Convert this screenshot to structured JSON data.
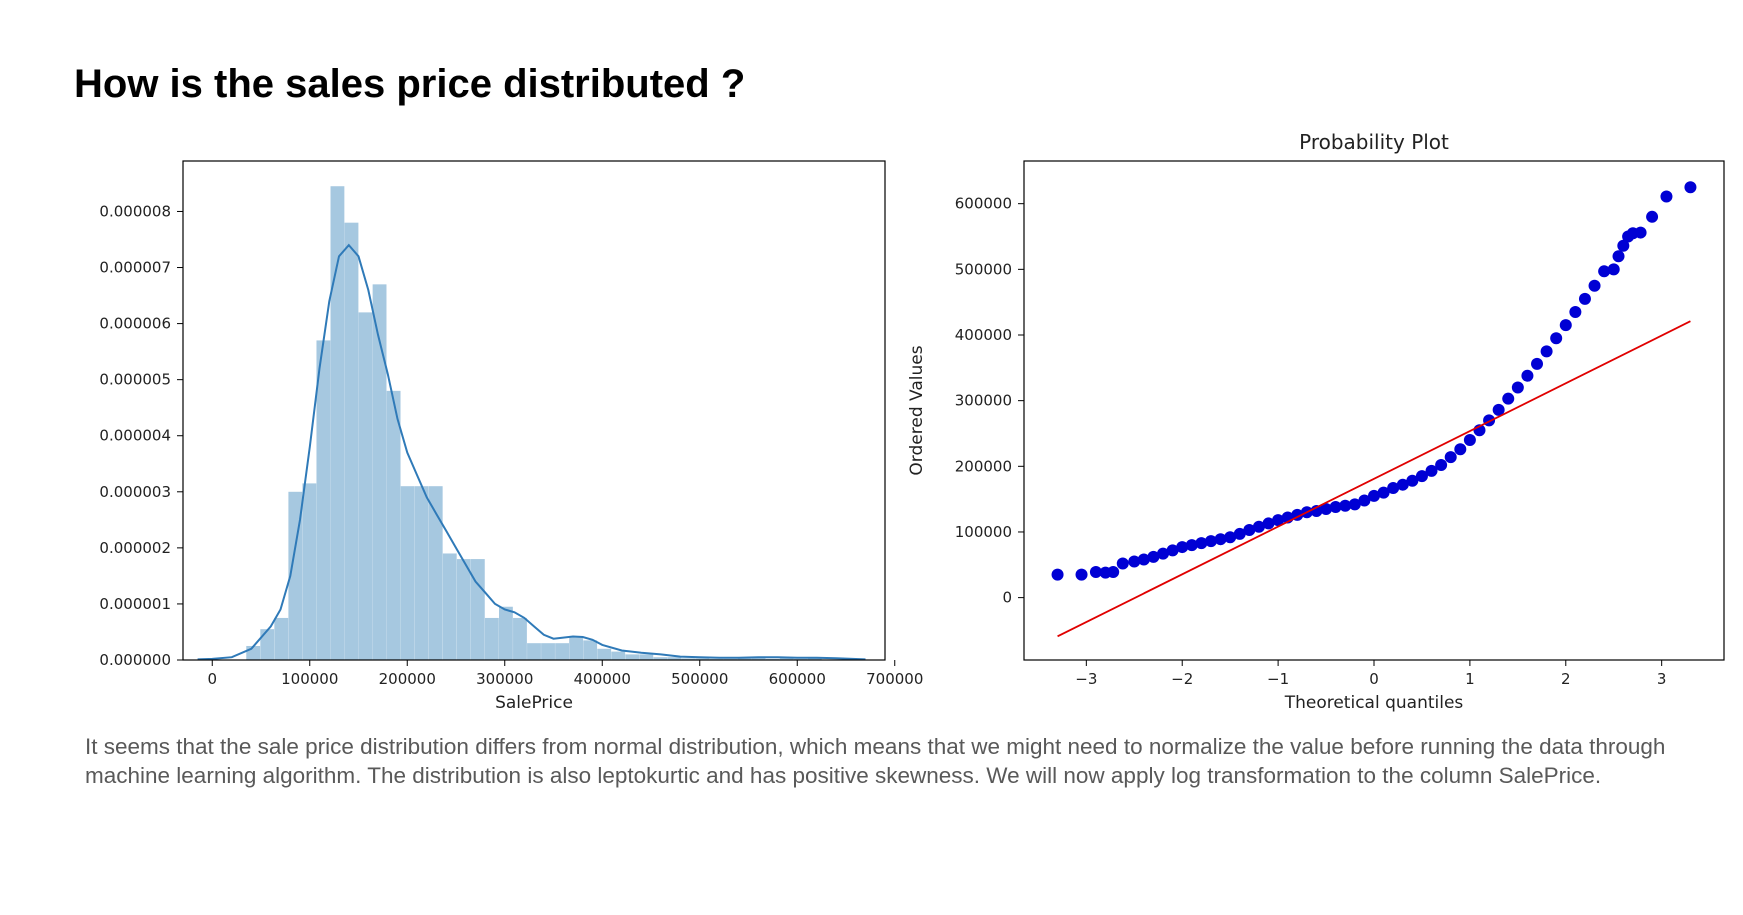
{
  "page": {
    "title": "How is the sales price distributed ?",
    "caption": "It seems that the sale price distribution differs from normal distribution, which means that we might need to normalize the value before running the data through machine learning algorithm. The distribution is also leptokurtic and has positive skewness. We will now apply log transformation to the column SalePrice."
  },
  "colors": {
    "hist_bar": "#a6c8e0",
    "kde_line": "#2f7ab8",
    "qq_points": "#0000d4",
    "qq_fit_line": "#e00000",
    "axes": "#000000"
  },
  "chart_data": [
    {
      "type": "bar",
      "subtype": "histogram-with-kde",
      "title": "",
      "xlabel": "SalePrice",
      "ylabel": "",
      "xlim": [
        -30000,
        690000
      ],
      "ylim": [
        0,
        8.9e-06
      ],
      "xticks": [
        0,
        100000,
        200000,
        300000,
        400000,
        500000,
        600000,
        700000
      ],
      "xtick_labels": [
        "0",
        "100000",
        "200000",
        "300000",
        "400000",
        "500000",
        "600000",
        "700000"
      ],
      "yticks": [
        0,
        1e-06,
        2e-06,
        3e-06,
        4e-06,
        5e-06,
        6e-06,
        7e-06,
        8e-06
      ],
      "ytick_labels": [
        "0.000000",
        "0.000001",
        "0.000002",
        "0.000003",
        "0.000004",
        "0.000005",
        "0.000006",
        "0.000007",
        "0.000008"
      ],
      "bins": [
        {
          "x0": 34900,
          "x1": 49300,
          "density": 2.5e-07
        },
        {
          "x0": 49300,
          "x1": 63700,
          "density": 5.5e-07
        },
        {
          "x0": 63700,
          "x1": 78100,
          "density": 7.5e-07
        },
        {
          "x0": 78100,
          "x1": 92500,
          "density": 3e-06
        },
        {
          "x0": 92500,
          "x1": 106900,
          "density": 3.15e-06
        },
        {
          "x0": 106900,
          "x1": 121300,
          "density": 5.7e-06
        },
        {
          "x0": 121300,
          "x1": 135700,
          "density": 8.45e-06
        },
        {
          "x0": 135700,
          "x1": 150100,
          "density": 7.8e-06
        },
        {
          "x0": 150100,
          "x1": 164500,
          "density": 6.2e-06
        },
        {
          "x0": 164500,
          "x1": 178900,
          "density": 6.7e-06
        },
        {
          "x0": 178900,
          "x1": 193300,
          "density": 4.8e-06
        },
        {
          "x0": 193300,
          "x1": 207700,
          "density": 3.1e-06
        },
        {
          "x0": 207700,
          "x1": 222100,
          "density": 3.1e-06
        },
        {
          "x0": 222100,
          "x1": 236500,
          "density": 3.1e-06
        },
        {
          "x0": 236500,
          "x1": 250900,
          "density": 1.9e-06
        },
        {
          "x0": 250900,
          "x1": 265300,
          "density": 1.8e-06
        },
        {
          "x0": 265300,
          "x1": 279700,
          "density": 1.8e-06
        },
        {
          "x0": 279700,
          "x1": 294100,
          "density": 7.5e-07
        },
        {
          "x0": 294100,
          "x1": 308500,
          "density": 9.5e-07
        },
        {
          "x0": 308500,
          "x1": 322900,
          "density": 7.5e-07
        },
        {
          "x0": 322900,
          "x1": 337300,
          "density": 3e-07
        },
        {
          "x0": 337300,
          "x1": 351700,
          "density": 3e-07
        },
        {
          "x0": 351700,
          "x1": 366100,
          "density": 3e-07
        },
        {
          "x0": 366100,
          "x1": 380500,
          "density": 4e-07
        },
        {
          "x0": 380500,
          "x1": 394900,
          "density": 3.5e-07
        },
        {
          "x0": 394900,
          "x1": 409300,
          "density": 2e-07
        },
        {
          "x0": 409300,
          "x1": 423700,
          "density": 1.5e-07
        },
        {
          "x0": 423700,
          "x1": 438100,
          "density": 1e-07
        },
        {
          "x0": 438100,
          "x1": 452500,
          "density": 1e-07
        },
        {
          "x0": 452500,
          "x1": 466900,
          "density": 5e-08
        },
        {
          "x0": 466900,
          "x1": 481300,
          "density": 5e-08
        },
        {
          "x0": 481300,
          "x1": 495700,
          "density": 3e-08
        },
        {
          "x0": 495700,
          "x1": 510100,
          "density": 3e-08
        },
        {
          "x0": 510100,
          "x1": 524500,
          "density": 2e-08
        },
        {
          "x0": 524500,
          "x1": 538900,
          "density": 2e-08
        },
        {
          "x0": 538900,
          "x1": 553300,
          "density": 4e-08
        },
        {
          "x0": 553300,
          "x1": 567700,
          "density": 4e-08
        },
        {
          "x0": 567700,
          "x1": 582100,
          "density": 2e-08
        },
        {
          "x0": 582100,
          "x1": 596500,
          "density": 4e-08
        },
        {
          "x0": 596500,
          "x1": 610900,
          "density": 2e-08
        },
        {
          "x0": 610900,
          "x1": 625300,
          "density": 4e-08
        },
        {
          "x0": 625300,
          "x1": 639700,
          "density": 1e-08
        },
        {
          "x0": 639700,
          "x1": 654100,
          "density": 1e-08
        },
        {
          "x0": 654100,
          "x1": 668500,
          "density": 1e-08
        }
      ],
      "kde": {
        "x": [
          -15000,
          0,
          20000,
          40000,
          60000,
          70000,
          80000,
          90000,
          100000,
          110000,
          120000,
          130000,
          140000,
          150000,
          160000,
          170000,
          180000,
          190000,
          200000,
          210000,
          220000,
          230000,
          240000,
          250000,
          260000,
          270000,
          280000,
          290000,
          300000,
          310000,
          320000,
          330000,
          340000,
          350000,
          360000,
          370000,
          380000,
          390000,
          400000,
          420000,
          440000,
          460000,
          480000,
          500000,
          520000,
          540000,
          560000,
          580000,
          600000,
          620000,
          640000,
          670000
        ],
        "y": [
          1e-08,
          2e-08,
          5e-08,
          2e-07,
          6e-07,
          9e-07,
          1.5e-06,
          2.5e-06,
          3.8e-06,
          5.2e-06,
          6.4e-06,
          7.2e-06,
          7.4e-06,
          7.2e-06,
          6.6e-06,
          5.8e-06,
          5.1e-06,
          4.3e-06,
          3.7e-06,
          3.3e-06,
          2.9e-06,
          2.6e-06,
          2.3e-06,
          2e-06,
          1.7e-06,
          1.4e-06,
          1.2e-06,
          1e-06,
          9e-07,
          8.5e-07,
          7.5e-07,
          6e-07,
          4.5e-07,
          3.8e-07,
          4e-07,
          4.2e-07,
          4.1e-07,
          3.6e-07,
          2.7e-07,
          1.7e-07,
          1.3e-07,
          1e-07,
          6e-08,
          5e-08,
          4e-08,
          4e-08,
          5e-08,
          5e-08,
          4e-08,
          4e-08,
          3e-08,
          1e-08
        ]
      }
    },
    {
      "type": "scatter",
      "subtype": "probability-plot",
      "title": "Probability Plot",
      "xlabel": "Theoretical quantiles",
      "ylabel": "Ordered Values",
      "xlim": [
        -3.65,
        3.65
      ],
      "ylim": [
        -95000,
        665000
      ],
      "xticks": [
        -3,
        -2,
        -1,
        0,
        1,
        2,
        3
      ],
      "xtick_labels": [
        "−3",
        "−2",
        "−1",
        "0",
        "1",
        "2",
        "3"
      ],
      "yticks": [
        0,
        100000,
        200000,
        300000,
        400000,
        500000,
        600000
      ],
      "ytick_labels": [
        "0",
        "100000",
        "200000",
        "300000",
        "400000",
        "500000",
        "600000"
      ],
      "fit_line": {
        "x": [
          -3.3,
          3.3
        ],
        "y": [
          -59000,
          421000
        ]
      },
      "points": {
        "x": [
          -3.3,
          -3.05,
          -2.9,
          -2.8,
          -2.72,
          -2.62,
          -2.5,
          -2.4,
          -2.3,
          -2.2,
          -2.1,
          -2.0,
          -1.9,
          -1.8,
          -1.7,
          -1.6,
          -1.5,
          -1.4,
          -1.3,
          -1.2,
          -1.1,
          -1.0,
          -0.9,
          -0.8,
          -0.7,
          -0.6,
          -0.5,
          -0.4,
          -0.3,
          -0.2,
          -0.1,
          0.0,
          0.1,
          0.2,
          0.3,
          0.4,
          0.5,
          0.6,
          0.7,
          0.8,
          0.9,
          1.0,
          1.1,
          1.2,
          1.3,
          1.4,
          1.5,
          1.6,
          1.7,
          1.8,
          1.9,
          2.0,
          2.1,
          2.2,
          2.3,
          2.4,
          2.5,
          2.55,
          2.6,
          2.65,
          2.7,
          2.78,
          2.9,
          3.05,
          3.3
        ],
        "y": [
          35000,
          35000,
          39000,
          38000,
          39000,
          52000,
          55000,
          58000,
          62000,
          67000,
          72000,
          77000,
          80000,
          83000,
          86000,
          89000,
          92000,
          97000,
          103000,
          108000,
          113000,
          118000,
          122000,
          126000,
          130000,
          132000,
          135000,
          138000,
          140000,
          142000,
          148000,
          155000,
          160000,
          167000,
          172000,
          178000,
          185000,
          193000,
          202000,
          214000,
          226000,
          240000,
          255000,
          270000,
          286000,
          303000,
          320000,
          338000,
          356000,
          375000,
          395000,
          415000,
          435000,
          455000,
          475000,
          497000,
          500000,
          520000,
          536000,
          550000,
          555000,
          556000,
          580000,
          611000,
          625000
        ]
      }
    }
  ]
}
